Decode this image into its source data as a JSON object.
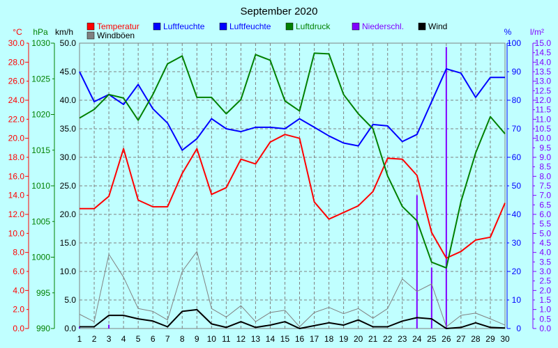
{
  "chart_data": {
    "type": "line",
    "title": "September 2020",
    "x": [
      1,
      2,
      3,
      4,
      5,
      6,
      7,
      8,
      9,
      10,
      11,
      12,
      13,
      14,
      15,
      16,
      17,
      18,
      19,
      20,
      21,
      22,
      23,
      24,
      25,
      26,
      27,
      28,
      29,
      30
    ],
    "axes": {
      "temp": {
        "unit": "°C",
        "color": "#ff0000",
        "min": 0,
        "max": 30,
        "step": 2,
        "decimals": 1
      },
      "pressure": {
        "unit": "hPa",
        "color": "#008000",
        "min": 990,
        "max": 1030,
        "step": 5,
        "decimals": 0
      },
      "wind": {
        "unit": "km/h",
        "color": "#000000",
        "min": 0,
        "max": 50,
        "step": 5,
        "decimals": 1
      },
      "humidity": {
        "unit": "%",
        "color": "#0000ff",
        "min": 0,
        "max": 100,
        "step": 10,
        "decimals": 0
      },
      "precip": {
        "unit": "l/m²",
        "color": "#8000ff",
        "min": 0,
        "max": 15,
        "step": 0.5,
        "decimals": 1
      }
    },
    "legend": [
      {
        "label": "Temperatur",
        "color": "#ff0000"
      },
      {
        "label": "Luftfeuchte",
        "color": "#0000ff"
      },
      {
        "label": "Luftfeuchte",
        "color": "#0000ff"
      },
      {
        "label": "Luftdruck",
        "color": "#008000"
      },
      {
        "label": "Niederschl.",
        "color": "#8000ff"
      },
      {
        "label": "Wind",
        "color": "#000000"
      },
      {
        "label": "Windböen",
        "color": "#808080"
      }
    ],
    "series": [
      {
        "name": "Temperatur",
        "axis": "temp",
        "color": "#ff0000",
        "width": 2,
        "values": [
          12.6,
          12.6,
          13.9,
          18.9,
          13.5,
          12.8,
          12.8,
          16.3,
          18.9,
          14.1,
          14.8,
          17.8,
          17.3,
          19.6,
          20.4,
          20.0,
          13.3,
          11.5,
          12.2,
          12.9,
          14.4,
          17.9,
          17.8,
          16.1,
          10.1,
          7.4,
          8.1,
          9.3,
          9.6,
          13.2
        ]
      },
      {
        "name": "Luftfeuchte",
        "axis": "humidity",
        "color": "#0000ff",
        "width": 2,
        "values": [
          90,
          79.5,
          82,
          78.5,
          85.5,
          77,
          72,
          62.5,
          66.5,
          73.5,
          70,
          69,
          70.5,
          70.5,
          70,
          73.5,
          70.5,
          67.5,
          65,
          64,
          71.5,
          71,
          65.5,
          68,
          79.5,
          91,
          89.5,
          81,
          88,
          88
        ]
      },
      {
        "name": "Luftdruck",
        "axis": "pressure",
        "color": "#008000",
        "width": 2,
        "values": [
          1019.5,
          1020.7,
          1022.8,
          1022.3,
          1019.2,
          1022.8,
          1027.1,
          1028.2,
          1022.4,
          1022.4,
          1020.1,
          1022.1,
          1028.4,
          1027.6,
          1021.9,
          1020.5,
          1028.6,
          1028.5,
          1022.8,
          1020.1,
          1018,
          1011.4,
          1007.1,
          1005.1,
          999.3,
          998.5,
          1007.8,
          1014.6,
          1019.7,
          1017.3
        ]
      },
      {
        "name": "Windböen",
        "axis": "wind",
        "color": "#808080",
        "width": 1,
        "values": [
          2.5,
          1.2,
          13,
          9,
          3.5,
          3,
          1.5,
          10,
          13.5,
          3.5,
          2,
          4,
          1.2,
          2.8,
          3.2,
          0.3,
          2.8,
          3.7,
          2.6,
          3.5,
          1.8,
          3.5,
          8.7,
          6.5,
          7.8,
          0.3,
          2.3,
          2.7,
          1.7,
          0.6
        ]
      },
      {
        "name": "Wind",
        "axis": "wind",
        "color": "#000000",
        "width": 2,
        "values": [
          0.3,
          0.3,
          2.3,
          2.3,
          1.7,
          1.3,
          0.3,
          3,
          3.3,
          0.8,
          0.2,
          1.2,
          0.2,
          0.6,
          1.2,
          0,
          0.5,
          1,
          0.6,
          1.5,
          0.3,
          0.3,
          1.3,
          1.9,
          1.7,
          0,
          0.2,
          1,
          0.2,
          0.1
        ]
      }
    ],
    "bars": {
      "name": "Niederschl.",
      "axis": "precip",
      "color": "#8000ff",
      "values": [
        0.1,
        0,
        0.2,
        0,
        0,
        0,
        0,
        0,
        0,
        0,
        0,
        0,
        0,
        0,
        0,
        0,
        0,
        0,
        0,
        0,
        0,
        0,
        0,
        7,
        3.2,
        14.8,
        0,
        0,
        0,
        0
      ]
    }
  }
}
